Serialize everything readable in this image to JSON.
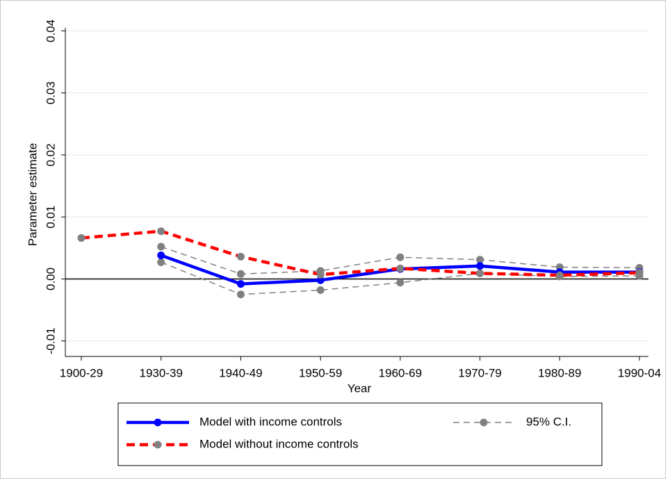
{
  "chart_data": {
    "type": "line",
    "x_label": "Year",
    "y_label": "Parameter estimate",
    "categories": [
      "1900-29",
      "1930-39",
      "1940-49",
      "1950-59",
      "1960-69",
      "1970-79",
      "1980-89",
      "1990-04"
    ],
    "series": [
      {
        "name": "Model with income controls",
        "color": "#0000ff",
        "marker_color": "#0000ff",
        "dash": false,
        "values": [
          null,
          0.0038,
          -0.0008,
          -0.0002,
          0.0016,
          0.0021,
          0.0011,
          0.0011
        ]
      },
      {
        "name": "Model without income controls",
        "color": "#ff0000",
        "marker_color": "#808080",
        "dash": true,
        "values": [
          0.0066,
          0.0077,
          0.0036,
          0.0007,
          0.0017,
          0.0009,
          0.0006,
          0.001
        ]
      }
    ],
    "ci": {
      "name": "95% C.I.",
      "color": "#808080",
      "upper": [
        null,
        0.0052,
        0.0008,
        0.0013,
        0.0035,
        0.0031,
        0.0019,
        0.0018
      ],
      "lower": [
        null,
        0.0027,
        -0.0025,
        -0.0018,
        -0.0006,
        0.0009,
        0.0004,
        0.0005
      ]
    },
    "ylim": [
      -0.0125,
      0.0405
    ],
    "yticks": [
      {
        "value": -0.01,
        "label": "-0.01"
      },
      {
        "value": 0,
        "label": "0.00"
      },
      {
        "value": 0.01,
        "label": "0.01"
      },
      {
        "value": 0.02,
        "label": "0.02"
      },
      {
        "value": 0.03,
        "label": "0.03"
      },
      {
        "value": 0.04,
        "label": "0.04"
      }
    ],
    "grid": true,
    "zero_line": true
  }
}
